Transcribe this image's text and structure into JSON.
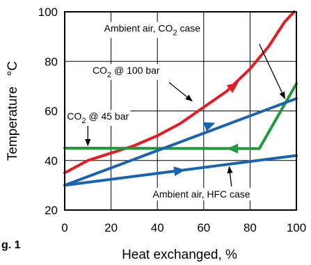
{
  "figure_label": "g. 1",
  "chart_data": {
    "type": "line",
    "xlabel": "Heat exchanged, %",
    "ylabel": "Temperature",
    "ylabel_unit": "°C",
    "xlim": [
      0,
      100
    ],
    "ylim": [
      20,
      100
    ],
    "xticks": [
      0,
      20,
      40,
      60,
      80,
      100
    ],
    "yticks": [
      20,
      40,
      60,
      80,
      100
    ],
    "grid": true,
    "series": [
      {
        "key": "co2_100",
        "color": "#e51c23",
        "points": [
          [
            0,
            35
          ],
          [
            10,
            40
          ],
          [
            20,
            43
          ],
          [
            30,
            46
          ],
          [
            40,
            50
          ],
          [
            50,
            55
          ],
          [
            60,
            61.5
          ],
          [
            70,
            68
          ],
          [
            80,
            77
          ],
          [
            88,
            86
          ],
          [
            95,
            96
          ],
          [
            99,
            100
          ]
        ],
        "arrows": [
          [
            65,
            64.5,
            75,
            71.5
          ]
        ]
      },
      {
        "key": "co2_45",
        "color": "#1f9a3a",
        "points": [
          [
            0,
            45
          ],
          [
            84,
            44.8
          ],
          [
            100,
            71
          ]
        ],
        "arrows": [
          [
            80,
            44.8,
            70,
            44.8
          ]
        ]
      },
      {
        "key": "ambient_co2",
        "color": "#1a63b0",
        "points": [
          [
            0,
            30
          ],
          [
            100,
            65
          ]
        ],
        "arrows": [
          [
            55,
            51.7,
            65,
            55.2
          ]
        ]
      },
      {
        "key": "ambient_hfc",
        "color": "#1a63b0",
        "points": [
          [
            0,
            30
          ],
          [
            100,
            42
          ]
        ],
        "arrows": [
          [
            40,
            34.8,
            52,
            36.2
          ]
        ]
      }
    ],
    "annotations": [
      {
        "key": "ambient_co2",
        "label": "Ambient air, CO",
        "sub": "2",
        "suffix": " case",
        "text_at": [
          17,
          92
        ],
        "pointer": [
          [
            84,
            87
          ],
          [
            95,
            65
          ]
        ]
      },
      {
        "key": "co2_100",
        "label": "CO",
        "sub": "2",
        "suffix": " @ 100 bar",
        "text_at": [
          12,
          75
        ],
        "pointer": [
          [
            45,
            71.5
          ],
          [
            55,
            64
          ]
        ]
      },
      {
        "key": "co2_45",
        "label": "CO",
        "sub": "2",
        "suffix": " @ 45 bar",
        "text_at": [
          1,
          56.5
        ],
        "pointer": [
          [
            10,
            54
          ],
          [
            10,
            46
          ]
        ]
      },
      {
        "key": "ambient_hfc",
        "label": "Ambient air,  HFC  case",
        "sub": "",
        "suffix": "",
        "text_at": [
          38,
          25
        ],
        "pointer": [
          [
            72,
            29.5
          ],
          [
            71,
            37.5
          ]
        ]
      }
    ]
  }
}
